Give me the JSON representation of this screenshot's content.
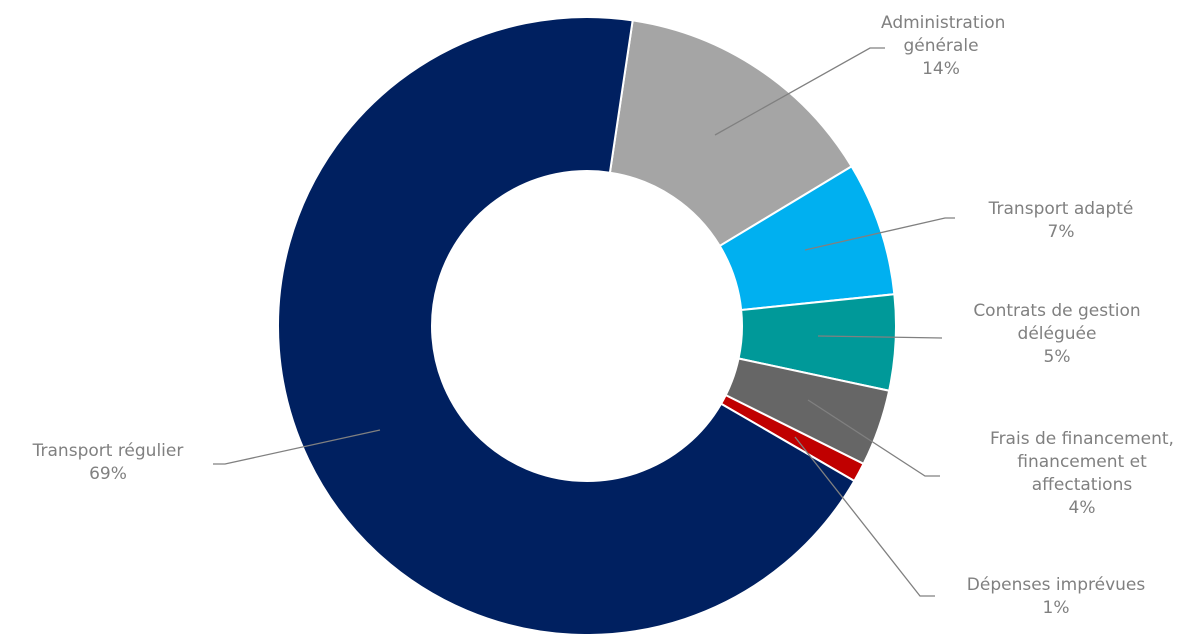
{
  "chart_data": {
    "type": "donut",
    "categories": [
      "Administration générale",
      "Transport adapté",
      "Contrats de gestion déléguée",
      "Frais de financement, financement et affectations",
      "Dépenses imprévues",
      "Transport régulier"
    ],
    "values": [
      14,
      7,
      5,
      4,
      1,
      69
    ],
    "value_labels": [
      "14%",
      "7%",
      "5%",
      "4%",
      "1%",
      "69%"
    ],
    "colors": [
      "#a5a5a5",
      "#00b0f0",
      "#009999",
      "#666666",
      "#c00000",
      "#002060"
    ]
  }
}
